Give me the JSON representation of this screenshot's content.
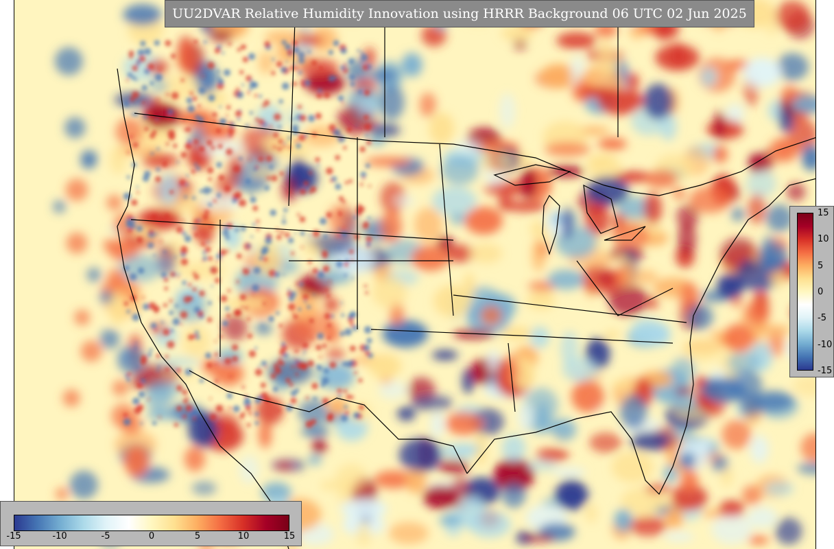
{
  "title": "UU2DVAR Relative Humidity Innovation using HRRR Background 06 UTC 02 Jun 2025",
  "colorbar": {
    "min": -15,
    "max": 15,
    "right_ticks": [
      "15",
      "10",
      "5",
      "0",
      "-5",
      "-10",
      "-15"
    ],
    "bottom_ticks": [
      "-15",
      "-10",
      "-5",
      "0",
      "5",
      "10",
      "15"
    ],
    "colormap": "RdYlBu_r",
    "stops": [
      "#2b3990",
      "#4575b4",
      "#74add1",
      "#abd9e9",
      "#e0f3f8",
      "#ffffff",
      "#fff7c0",
      "#fee090",
      "#fdae61",
      "#f46d43",
      "#d73027",
      "#a50026",
      "#7a0018"
    ]
  },
  "colors": {
    "background": "#fff7c0",
    "frame": "#8a8a8a",
    "legend_panel": "#b8b8b8",
    "positive": "#d73027",
    "negative": "#4575b4"
  }
}
